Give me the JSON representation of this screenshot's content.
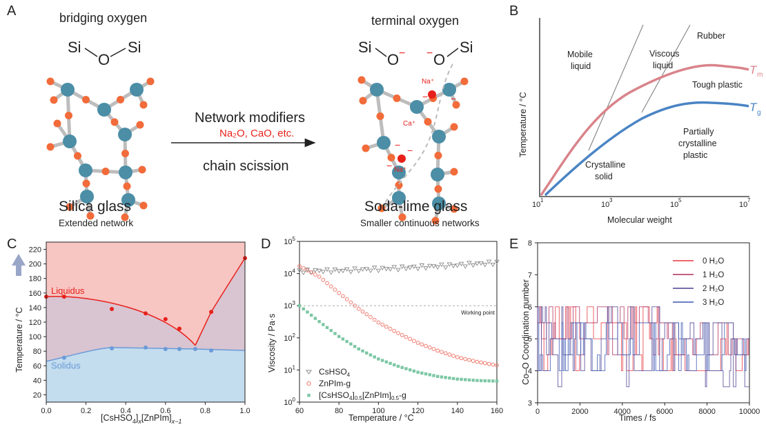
{
  "panelA": {
    "label": "A",
    "bridging_title": "bridging oxygen",
    "terminal_title": "terminal oxygen",
    "si": "Si",
    "o": "O",
    "o_minus": "O",
    "minus": "−",
    "silica_title": "Silica glass",
    "silica_sub": "Extended network",
    "soda_title": "Soda-lime glass",
    "soda_sub": "Smaller continuous networks",
    "arrow_top": "Network modifiers",
    "arrow_red": "Na₂O, CaO, etc.",
    "arrow_bottom": "chain scission",
    "na": "Na⁺",
    "ca": "Ca⁺"
  },
  "panelB": {
    "label": "B",
    "ylabel": "Temperature / °C",
    "xlabel": "Molecular weight",
    "ticks": [
      "10",
      "10",
      "10",
      "10"
    ],
    "tick_exps": [
      "1",
      "3",
      "5",
      "7"
    ],
    "regions": {
      "mobile1": "Mobile",
      "mobile2": "liquid",
      "viscous1": "Viscous",
      "viscous2": "liquid",
      "rubber": "Rubber",
      "tough": "Tough plastic",
      "pc1": "Partially",
      "pc2": "crystalline",
      "pc3": "plastic",
      "cs1": "Crystalline",
      "cs2": "solid"
    },
    "tm": "T",
    "tm_sub": "m",
    "tg": "T",
    "tg_sub": "g",
    "colors": {
      "tm": "#d9838a",
      "tg": "#4a84c4"
    }
  },
  "chart_data": [
    {
      "panel": "C",
      "type": "scatter",
      "ylabel": "Temperature / °C",
      "xlabel": "[CsHSO4]x[ZnPIm]x−1",
      "xlim": [
        0,
        1.0
      ],
      "ylim": [
        10,
        230
      ],
      "x_ticks": [
        "0.0",
        "0.2",
        "0.4",
        "0.6",
        "0.8",
        "1.0"
      ],
      "y_ticks": [
        "20",
        "40",
        "60",
        "80",
        "100",
        "120",
        "140",
        "160",
        "180",
        "200",
        "220"
      ],
      "series": [
        {
          "name": "Liquidus",
          "color": "#e8201a",
          "x": [
            0.0,
            0.09,
            0.33,
            0.5,
            0.6,
            0.67,
            0.83,
            1.0
          ],
          "y": [
            155,
            155,
            138,
            132,
            124,
            111,
            134,
            208
          ]
        },
        {
          "name": "Solidus",
          "color": "#6a9bd8",
          "x": [
            0.09,
            0.33,
            0.5,
            0.6,
            0.67,
            0.75,
            0.83
          ],
          "y": [
            71,
            84,
            85,
            83,
            83,
            83,
            81
          ]
        }
      ]
    },
    {
      "panel": "D",
      "type": "scatter",
      "ylabel": "Viscosity / Pa·s",
      "xlabel": "Temperature / °C",
      "xlim": [
        60,
        160
      ],
      "ylim_log10": [
        0,
        5
      ],
      "x_ticks": [
        "60",
        "80",
        "100",
        "120",
        "140",
        "160"
      ],
      "annotation": "Working point",
      "working_point": 1000,
      "series": [
        {
          "name": "CsHSO4",
          "color": "#8a8a8a",
          "x": [
            60,
            80,
            100,
            120,
            140,
            160
          ],
          "y": [
            12000,
            12500,
            14000,
            16000,
            18500,
            22000
          ]
        },
        {
          "name": "ZnPIm-g",
          "color": "#ef7a6e",
          "x": [
            60,
            70,
            80,
            90,
            100,
            110,
            120,
            130,
            140,
            150,
            160
          ],
          "y": [
            17000,
            8000,
            2500,
            800,
            300,
            140,
            70,
            40,
            25,
            18,
            14
          ]
        },
        {
          "name": "[CsHSO4]0.5[ZnPIm]0.5-g",
          "color": "#7cc7a4",
          "x": [
            60,
            70,
            80,
            90,
            100,
            110,
            120,
            130,
            140,
            150,
            160
          ],
          "y": [
            1000,
            320,
            110,
            45,
            22,
            13,
            8.5,
            6.3,
            5.2,
            4.7,
            4.5
          ]
        }
      ]
    },
    {
      "panel": "E",
      "type": "line",
      "ylabel": "Co–O Coordination number",
      "xlabel": "Times / fs",
      "xlim": [
        0,
        10000
      ],
      "ylim": [
        3,
        8
      ],
      "x_ticks": [
        "0",
        "2000",
        "4000",
        "6000",
        "8000",
        "10000"
      ],
      "y_ticks": [
        "3",
        "4",
        "5",
        "6",
        "7",
        "8"
      ],
      "series": [
        {
          "name": "0 H₂O",
          "color": "#e8333a"
        },
        {
          "name": "1 H₂O",
          "color": "#b02a5a"
        },
        {
          "name": "2 H₂O",
          "color": "#4b3d8f"
        },
        {
          "name": "3 H₂O",
          "color": "#3955b0"
        }
      ]
    }
  ],
  "panel_labels": {
    "c": "C",
    "d": "D",
    "e": "E"
  },
  "panelC_labels": {
    "liquidus": "Liquidus",
    "solidus": "Solidus"
  },
  "panelE_legend": [
    "0 H₂O",
    "1 H₂O",
    "2 H₂O",
    "3 H₂O"
  ]
}
